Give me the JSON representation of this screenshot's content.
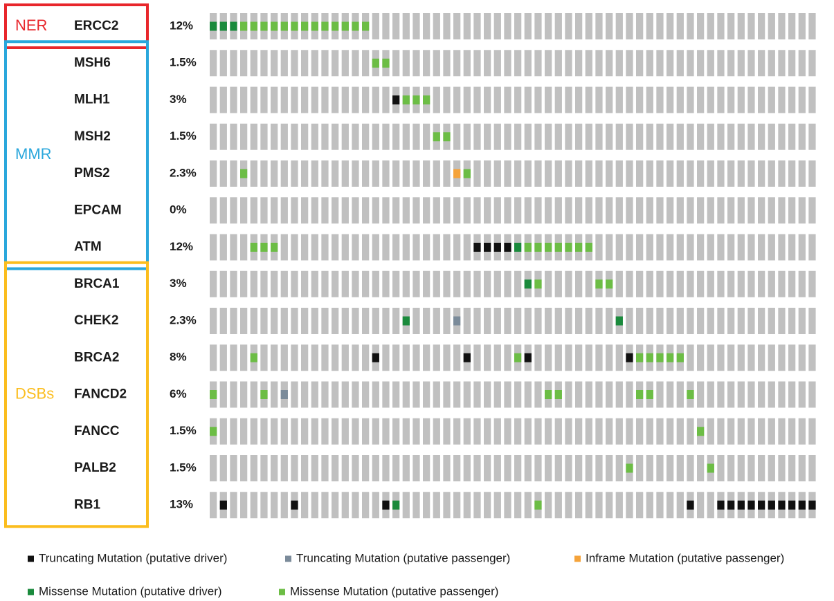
{
  "chart_data": {
    "type": "oncoprint",
    "samples": 60,
    "background_color": "#c0c0c0",
    "legend": [
      {
        "name": "Truncating Mutation (putative driver)",
        "color": "#111111"
      },
      {
        "name": "Truncating Mutation (putative passenger)",
        "color": "#7b8b9a"
      },
      {
        "name": "Inframe Mutation (putative passenger)",
        "color": "#f5a33a"
      },
      {
        "name": "Missense Mutation (putative driver)",
        "color": "#1a8a3c"
      },
      {
        "name": "Missense Mutation (putative passenger)",
        "color": "#6cbd45"
      }
    ],
    "groups": [
      {
        "name": "NER",
        "color": "#e8262b",
        "rows": [
          0,
          0
        ]
      },
      {
        "name": "MMR",
        "color": "#2aa7dc",
        "rows": [
          1,
          6
        ]
      },
      {
        "name": "DSBs",
        "color": "#fbbd1e",
        "rows": [
          7,
          13
        ]
      }
    ],
    "rows": [
      {
        "gene": "ERCC2",
        "percent": "12%",
        "alterations": [
          {
            "sample": 0,
            "type": 3
          },
          {
            "sample": 1,
            "type": 3
          },
          {
            "sample": 2,
            "type": 3
          },
          {
            "sample": 3,
            "type": 4
          },
          {
            "sample": 4,
            "type": 4
          },
          {
            "sample": 5,
            "type": 4
          },
          {
            "sample": 6,
            "type": 4
          },
          {
            "sample": 7,
            "type": 4
          },
          {
            "sample": 8,
            "type": 4
          },
          {
            "sample": 9,
            "type": 4
          },
          {
            "sample": 10,
            "type": 4
          },
          {
            "sample": 11,
            "type": 4
          },
          {
            "sample": 12,
            "type": 4
          },
          {
            "sample": 13,
            "type": 4
          },
          {
            "sample": 14,
            "type": 4
          },
          {
            "sample": 15,
            "type": 4
          }
        ]
      },
      {
        "gene": "MSH6",
        "percent": "1.5%",
        "alterations": [
          {
            "sample": 16,
            "type": 4
          },
          {
            "sample": 17,
            "type": 4
          }
        ]
      },
      {
        "gene": "MLH1",
        "percent": "3%",
        "alterations": [
          {
            "sample": 18,
            "type": 0
          },
          {
            "sample": 19,
            "type": 4
          },
          {
            "sample": 20,
            "type": 4
          },
          {
            "sample": 21,
            "type": 4
          }
        ]
      },
      {
        "gene": "MSH2",
        "percent": "1.5%",
        "alterations": [
          {
            "sample": 22,
            "type": 4
          },
          {
            "sample": 23,
            "type": 4
          }
        ]
      },
      {
        "gene": "PMS2",
        "percent": "2.3%",
        "alterations": [
          {
            "sample": 3,
            "type": 4
          },
          {
            "sample": 24,
            "type": 2
          },
          {
            "sample": 25,
            "type": 4
          }
        ]
      },
      {
        "gene": "EPCAM",
        "percent": "0%",
        "alterations": []
      },
      {
        "gene": "ATM",
        "percent": "12%",
        "alterations": [
          {
            "sample": 4,
            "type": 4
          },
          {
            "sample": 5,
            "type": 4
          },
          {
            "sample": 6,
            "type": 4
          },
          {
            "sample": 26,
            "type": 0
          },
          {
            "sample": 27,
            "type": 0
          },
          {
            "sample": 28,
            "type": 0
          },
          {
            "sample": 29,
            "type": 0
          },
          {
            "sample": 30,
            "type": 3
          },
          {
            "sample": 31,
            "type": 4
          },
          {
            "sample": 32,
            "type": 4
          },
          {
            "sample": 33,
            "type": 4
          },
          {
            "sample": 34,
            "type": 4
          },
          {
            "sample": 35,
            "type": 4
          },
          {
            "sample": 36,
            "type": 4
          },
          {
            "sample": 37,
            "type": 4
          }
        ]
      },
      {
        "gene": "BRCA1",
        "percent": "3%",
        "alterations": [
          {
            "sample": 31,
            "type": 3
          },
          {
            "sample": 32,
            "type": 4
          },
          {
            "sample": 38,
            "type": 4
          },
          {
            "sample": 39,
            "type": 4
          }
        ]
      },
      {
        "gene": "CHEK2",
        "percent": "2.3%",
        "alterations": [
          {
            "sample": 19,
            "type": 3
          },
          {
            "sample": 24,
            "type": 1
          },
          {
            "sample": 40,
            "type": 3
          }
        ]
      },
      {
        "gene": "BRCA2",
        "percent": "8%",
        "alterations": [
          {
            "sample": 4,
            "type": 4
          },
          {
            "sample": 16,
            "type": 0
          },
          {
            "sample": 25,
            "type": 0
          },
          {
            "sample": 30,
            "type": 4
          },
          {
            "sample": 31,
            "type": 0
          },
          {
            "sample": 41,
            "type": 0
          },
          {
            "sample": 42,
            "type": 4
          },
          {
            "sample": 43,
            "type": 4
          },
          {
            "sample": 44,
            "type": 4
          },
          {
            "sample": 45,
            "type": 4
          },
          {
            "sample": 46,
            "type": 4
          }
        ]
      },
      {
        "gene": "FANCD2",
        "percent": "6%",
        "alterations": [
          {
            "sample": 0,
            "type": 4
          },
          {
            "sample": 5,
            "type": 4
          },
          {
            "sample": 7,
            "type": 1
          },
          {
            "sample": 33,
            "type": 4
          },
          {
            "sample": 34,
            "type": 4
          },
          {
            "sample": 42,
            "type": 4
          },
          {
            "sample": 43,
            "type": 4
          },
          {
            "sample": 47,
            "type": 4
          }
        ]
      },
      {
        "gene": "FANCC",
        "percent": "1.5%",
        "alterations": [
          {
            "sample": 0,
            "type": 4
          },
          {
            "sample": 48,
            "type": 4
          }
        ]
      },
      {
        "gene": "PALB2",
        "percent": "1.5%",
        "alterations": [
          {
            "sample": 41,
            "type": 4
          },
          {
            "sample": 49,
            "type": 4
          }
        ]
      },
      {
        "gene": "RB1",
        "percent": "13%",
        "alterations": [
          {
            "sample": 1,
            "type": 0
          },
          {
            "sample": 8,
            "type": 0
          },
          {
            "sample": 17,
            "type": 0
          },
          {
            "sample": 18,
            "type": 3
          },
          {
            "sample": 32,
            "type": 4
          },
          {
            "sample": 47,
            "type": 0
          },
          {
            "sample": 50,
            "type": 0
          },
          {
            "sample": 51,
            "type": 0
          },
          {
            "sample": 52,
            "type": 0
          },
          {
            "sample": 53,
            "type": 0
          },
          {
            "sample": 54,
            "type": 0
          },
          {
            "sample": 55,
            "type": 0
          },
          {
            "sample": 56,
            "type": 0
          },
          {
            "sample": 57,
            "type": 0
          },
          {
            "sample": 58,
            "type": 0
          },
          {
            "sample": 59,
            "type": 0
          }
        ]
      }
    ]
  }
}
